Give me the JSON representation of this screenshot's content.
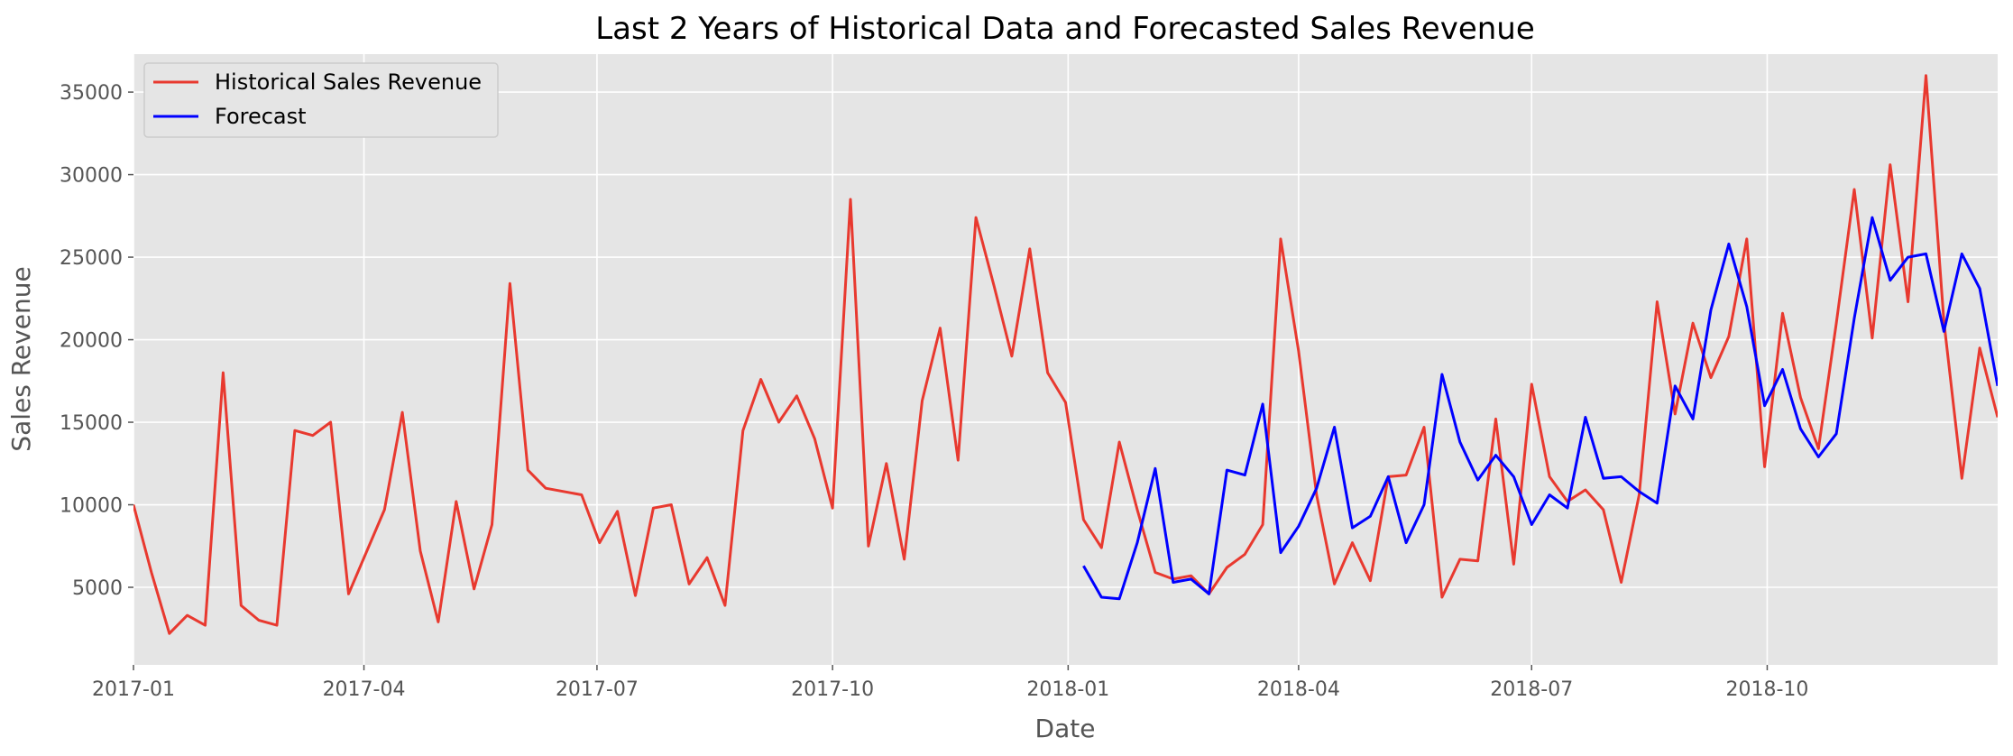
{
  "chart_data": {
    "type": "line",
    "title": "Last 2 Years of Historical Data and Forecasted Sales Revenue",
    "xlabel": "Date",
    "ylabel": "Sales Revenue",
    "xlim": [
      "2017-01-01",
      "2018-12-30"
    ],
    "ylim": [
      300,
      37300
    ],
    "x_ticks": [
      {
        "date": "2017-01-01",
        "label": "2017-01"
      },
      {
        "date": "2017-04-01",
        "label": "2017-04"
      },
      {
        "date": "2017-07-01",
        "label": "2017-07"
      },
      {
        "date": "2017-10-01",
        "label": "2017-10"
      },
      {
        "date": "2018-01-01",
        "label": "2018-01"
      },
      {
        "date": "2018-04-01",
        "label": "2018-04"
      },
      {
        "date": "2018-07-01",
        "label": "2018-07"
      },
      {
        "date": "2018-10-01",
        "label": "2018-10"
      }
    ],
    "y_ticks": [
      5000,
      10000,
      15000,
      20000,
      25000,
      30000,
      35000
    ],
    "grid": true,
    "style": "ggplot",
    "legend_position": "upper-left",
    "series": [
      {
        "name": "Historical Sales Revenue",
        "color": "#e8392f",
        "x": [
          "2017-01-01",
          "2017-01-08",
          "2017-01-15",
          "2017-01-22",
          "2017-01-29",
          "2017-02-05",
          "2017-02-12",
          "2017-02-19",
          "2017-02-26",
          "2017-03-05",
          "2017-03-12",
          "2017-03-19",
          "2017-03-26",
          "2017-04-09",
          "2017-04-16",
          "2017-04-23",
          "2017-04-30",
          "2017-05-07",
          "2017-05-14",
          "2017-05-21",
          "2017-05-28",
          "2017-06-04",
          "2017-06-11",
          "2017-06-25",
          "2017-07-02",
          "2017-07-09",
          "2017-07-16",
          "2017-07-23",
          "2017-07-30",
          "2017-08-06",
          "2017-08-13",
          "2017-08-20",
          "2017-08-27",
          "2017-09-03",
          "2017-09-10",
          "2017-09-17",
          "2017-09-24",
          "2017-10-01",
          "2017-10-08",
          "2017-10-15",
          "2017-10-22",
          "2017-10-29",
          "2017-11-05",
          "2017-11-12",
          "2017-11-19",
          "2017-11-26",
          "2017-12-03",
          "2017-12-10",
          "2017-12-17",
          "2017-12-24",
          "2017-12-31",
          "2018-01-07",
          "2018-01-14",
          "2018-01-21",
          "2018-01-28",
          "2018-02-04",
          "2018-02-11",
          "2018-02-18",
          "2018-02-25",
          "2018-03-04",
          "2018-03-11",
          "2018-03-18",
          "2018-03-25",
          "2018-04-01",
          "2018-04-08",
          "2018-04-15",
          "2018-04-22",
          "2018-04-29",
          "2018-05-06",
          "2018-05-13",
          "2018-05-20",
          "2018-05-27",
          "2018-06-03",
          "2018-06-10",
          "2018-06-17",
          "2018-06-24",
          "2018-07-01",
          "2018-07-08",
          "2018-07-15",
          "2018-07-22",
          "2018-07-29",
          "2018-08-05",
          "2018-08-12",
          "2018-08-19",
          "2018-08-26",
          "2018-09-02",
          "2018-09-09",
          "2018-09-16",
          "2018-09-23",
          "2018-09-30",
          "2018-10-07",
          "2018-10-14",
          "2018-10-21",
          "2018-10-28",
          "2018-11-04",
          "2018-11-11",
          "2018-11-18",
          "2018-11-25",
          "2018-12-02",
          "2018-12-09",
          "2018-12-16",
          "2018-12-23",
          "2018-12-30"
        ],
        "values": [
          10000,
          5900,
          2200,
          3300,
          2700,
          18000,
          3900,
          3000,
          2700,
          14500,
          14200,
          15000,
          4600,
          9700,
          15600,
          7200,
          2900,
          10200,
          4900,
          8800,
          23400,
          12100,
          11000,
          10600,
          7700,
          9600,
          4500,
          9800,
          10000,
          5200,
          6800,
          3900,
          14500,
          17600,
          15000,
          16600,
          14000,
          9800,
          28500,
          7500,
          12500,
          6700,
          16300,
          20700,
          12700,
          27400,
          23300,
          19000,
          25500,
          18000,
          16200,
          9100,
          7400,
          13800,
          9700,
          5900,
          5500,
          5700,
          4600,
          6200,
          7000,
          8800,
          26100,
          19300,
          10600,
          5200,
          7700,
          5400,
          11700,
          11800,
          14700,
          4400,
          6700,
          6600,
          15200,
          6400,
          17300,
          11700,
          10200,
          10900,
          9700,
          5300,
          10600,
          22300,
          15500,
          21000,
          17700,
          20200,
          26100,
          12300,
          21600,
          16500,
          13400,
          21000,
          29100,
          20100,
          30600,
          22300,
          36000,
          21100,
          11600,
          19500,
          15300
        ]
      },
      {
        "name": "Forecast",
        "color": "#0000ff",
        "x": [
          "2018-01-07",
          "2018-01-14",
          "2018-01-21",
          "2018-01-28",
          "2018-02-04",
          "2018-02-11",
          "2018-02-18",
          "2018-02-25",
          "2018-03-04",
          "2018-03-11",
          "2018-03-18",
          "2018-03-25",
          "2018-04-01",
          "2018-04-08",
          "2018-04-15",
          "2018-04-22",
          "2018-04-29",
          "2018-05-06",
          "2018-05-13",
          "2018-05-20",
          "2018-05-27",
          "2018-06-03",
          "2018-06-10",
          "2018-06-17",
          "2018-06-24",
          "2018-07-01",
          "2018-07-08",
          "2018-07-15",
          "2018-07-22",
          "2018-07-29",
          "2018-08-05",
          "2018-08-12",
          "2018-08-19",
          "2018-08-26",
          "2018-09-02",
          "2018-09-09",
          "2018-09-16",
          "2018-09-23",
          "2018-09-30",
          "2018-10-07",
          "2018-10-14",
          "2018-10-21",
          "2018-10-28",
          "2018-11-04",
          "2018-11-11",
          "2018-11-18",
          "2018-11-25",
          "2018-12-02",
          "2018-12-09",
          "2018-12-16",
          "2018-12-23",
          "2018-12-30"
        ],
        "values": [
          6300,
          4400,
          4300,
          7700,
          12200,
          5300,
          5500,
          4600,
          12100,
          11800,
          16100,
          7100,
          8700,
          11000,
          14700,
          8600,
          9300,
          11700,
          7700,
          10000,
          17900,
          13800,
          11500,
          13000,
          11700,
          8800,
          10600,
          9800,
          15300,
          11600,
          11700,
          10800,
          10100,
          17200,
          15200,
          21800,
          25800,
          22000,
          16000,
          18200,
          14600,
          12900,
          14300,
          21300,
          27400,
          23600,
          25000,
          25200,
          20500,
          25200,
          23100,
          17200
        ]
      }
    ]
  }
}
